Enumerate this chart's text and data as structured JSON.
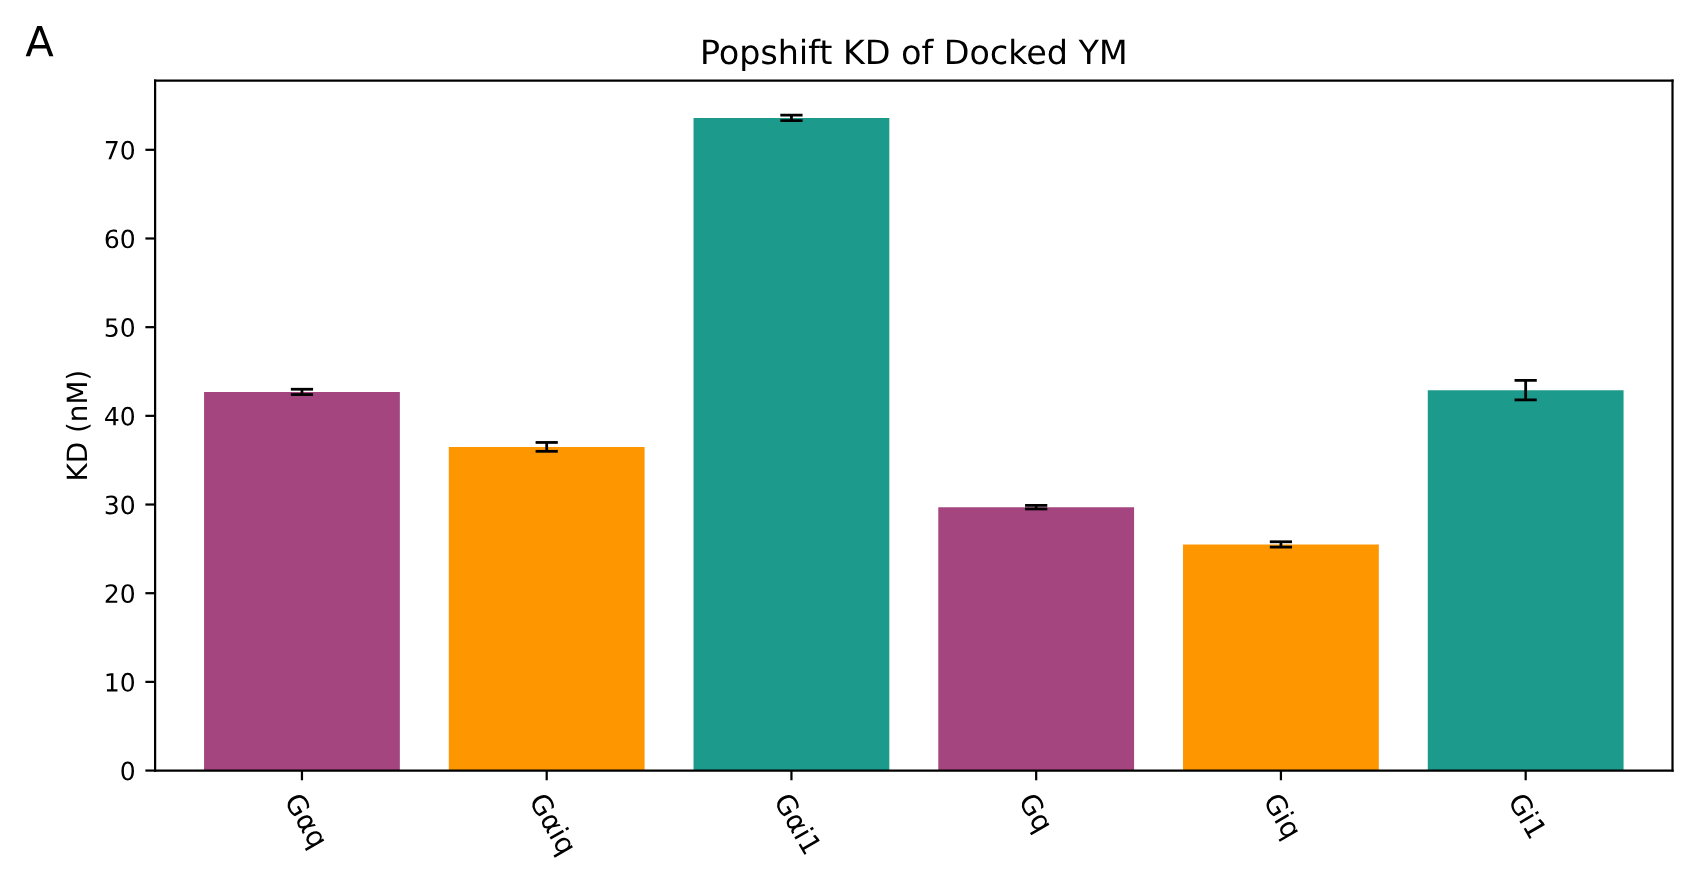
{
  "chart_data": {
    "type": "bar",
    "title": "Popshift KD of Docked YM",
    "ylabel": "KD (nM)",
    "annotations": [
      "A"
    ],
    "categories": [
      "Gαq",
      "Gαiq",
      "Gαi1",
      "Gq",
      "Giq",
      "Gi1"
    ],
    "values": [
      42.7,
      36.5,
      73.6,
      29.7,
      25.5,
      42.9
    ],
    "errors": [
      0.3,
      0.5,
      0.3,
      0.2,
      0.3,
      1.1
    ],
    "colors": [
      "#a4457f",
      "#fe9600",
      "#1c9a8b",
      "#a4457f",
      "#fe9600",
      "#1c9a8b"
    ],
    "ylim": [
      0,
      77.8
    ],
    "yticks": [
      0,
      10,
      20,
      30,
      40,
      50,
      60,
      70
    ],
    "grid": false,
    "legend": false
  }
}
